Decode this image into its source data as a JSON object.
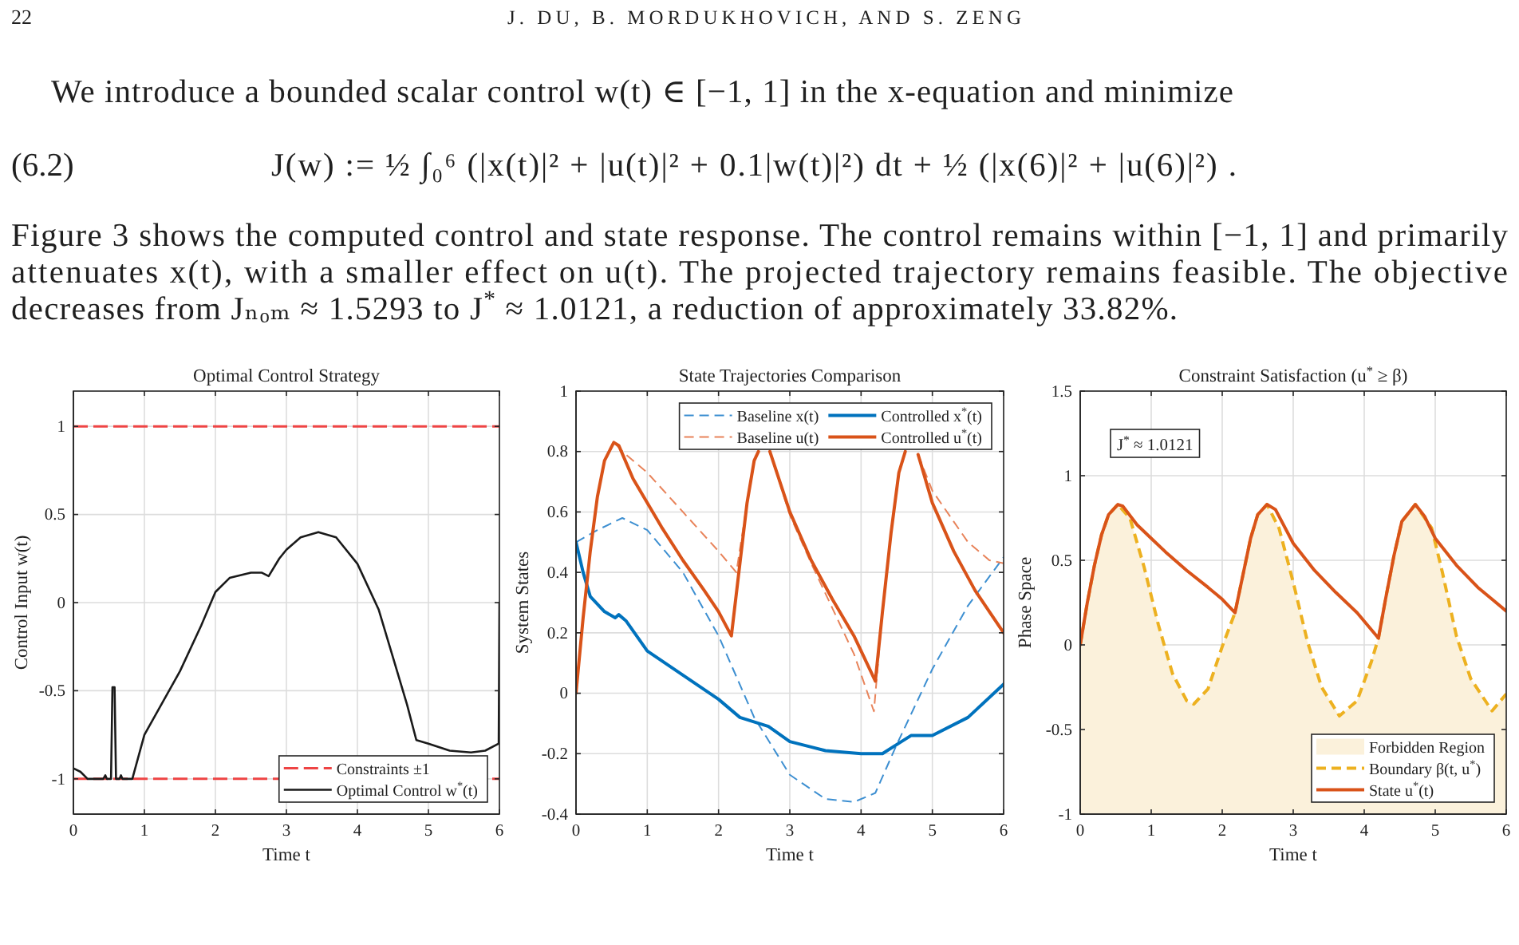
{
  "chart_data": [
    {
      "type": "other",
      "annotations": [
        "22",
        "J. DU, B. MORDUKHOVICH, AND S. ZENG",
        "We introduce a bounded scalar control w(t) ∈ [−1, 1] in the x-equation and minimize",
        "(6.2)",
        "J(w) := ½ ∫₀⁶ (|x(t)|² + |u(t)|² + 0.1|w(t)|²) dt + ½ (|x(6)|² + |u(6)|²) .",
        "Figure 3 shows the computed control and state response. The control remains within [−1, 1] and primarily",
        "attenuates x(t), with a smaller effect on u(t). The projected trajectory remains feasible. The objective",
        "decreases from Jₙₒₘ ≈ 1.5293 to J$^{*}$ ≈ 1.0121, a reduction of approximately 33.82%."
      ]
    },
    {
      "type": "line",
      "title": "Optimal Control Strategy",
      "xlabel": "Time t",
      "ylabel": "Control Input w(t)",
      "xlim": [
        0,
        6
      ],
      "xticks": [
        0,
        1,
        2,
        3,
        4,
        5,
        6
      ],
      "ylim": [
        -1.2,
        1.2
      ],
      "yticks": [
        -1,
        -0.5,
        0,
        0.5,
        1
      ],
      "grid": true,
      "legend": "bottom right",
      "series": [
        {
          "name": "Constraints ±1",
          "color": "#ee4444",
          "line_style": "dashed",
          "x": [
            0,
            6
          ],
          "values": [
            1,
            1
          ]
        },
        {
          "color": "#ee4444",
          "line_style": "dashed",
          "x": [
            0,
            6
          ],
          "values": [
            -1,
            -1
          ]
        },
        {
          "name": "Optimal Control w$^{*}$(t)",
          "color": "#1a1a1a",
          "x": [
            0,
            0.1,
            0.2,
            0.42,
            0.45,
            0.47,
            0.53,
            0.55,
            0.58,
            0.6,
            0.65,
            0.67,
            0.69,
            0.83,
            1,
            1.5,
            1.8,
            2,
            2.2,
            2.5,
            2.65,
            2.75,
            2.9,
            3,
            3.2,
            3.45,
            3.7,
            4,
            4.3,
            4.5,
            4.7,
            4.83,
            5,
            5.3,
            5.6,
            5.8,
            5.99,
            6
          ],
          "values": [
            -0.94,
            -0.96,
            -1,
            -1,
            -0.98,
            -1,
            -1,
            -0.48,
            -0.48,
            -1,
            -1,
            -0.98,
            -1,
            -1,
            -0.75,
            -0.39,
            -0.13,
            0.06,
            0.14,
            0.17,
            0.17,
            0.15,
            0.25,
            0.3,
            0.37,
            0.4,
            0.37,
            0.22,
            -0.04,
            -0.31,
            -0.58,
            -0.78,
            -0.8,
            -0.84,
            -0.85,
            -0.84,
            -0.8,
            0
          ]
        }
      ]
    },
    {
      "type": "line",
      "title": "State Trajectories Comparison",
      "xlabel": "Time t",
      "ylabel": "System States",
      "xlim": [
        0,
        6
      ],
      "xticks": [
        0,
        1,
        2,
        3,
        4,
        5,
        6
      ],
      "ylim": [
        -0.4,
        1
      ],
      "yticks": [
        -0.4,
        -0.2,
        0,
        0.2,
        0.4,
        0.6,
        0.8,
        1
      ],
      "grid": true,
      "legend": "top right",
      "series": [
        {
          "name": "Baseline x(t)",
          "color": "#3d8fd1",
          "line_style": "dashed",
          "x": [
            0,
            0.3,
            0.65,
            1,
            1.5,
            2,
            2.5,
            3,
            3.5,
            3.9,
            4.2,
            4.5,
            5,
            5.5,
            6
          ],
          "values": [
            0.5,
            0.54,
            0.58,
            0.54,
            0.4,
            0.19,
            -0.08,
            -0.27,
            -0.35,
            -0.36,
            -0.33,
            -0.17,
            0.08,
            0.29,
            0.45
          ]
        },
        {
          "name": "Controlled x$^{*}$(t)",
          "color": "#0072bd",
          "line_style": "solid",
          "x": [
            0,
            0.1,
            0.2,
            0.4,
            0.55,
            0.6,
            0.7,
            1,
            1.5,
            2,
            2.3,
            2.7,
            3,
            3.5,
            4,
            4.3,
            4.5,
            4.7,
            5,
            5.5,
            6
          ],
          "values": [
            0.5,
            0.4,
            0.32,
            0.27,
            0.25,
            0.26,
            0.24,
            0.14,
            0.06,
            -0.02,
            -0.08,
            -0.11,
            -0.16,
            -0.19,
            -0.2,
            -0.2,
            -0.17,
            -0.14,
            -0.14,
            -0.08,
            0.03
          ]
        },
        {
          "name": "Baseline u(t)",
          "color": "#e8835a",
          "line_style": "dashed",
          "x": [
            0,
            0.1,
            0.2,
            0.3,
            0.4,
            0.53,
            0.7,
            1,
            1.5,
            2,
            2.25,
            2.4,
            2.5,
            2.56,
            2.63,
            2.72,
            3,
            3.3,
            3.6,
            3.9,
            4.18,
            4.3,
            4.42,
            4.53,
            4.62,
            4.72,
            4.8,
            5,
            5.5,
            5.8,
            6
          ],
          "values": [
            0,
            0.25,
            0.47,
            0.65,
            0.77,
            0.83,
            0.79,
            0.73,
            0.6,
            0.47,
            0.4,
            0.63,
            0.77,
            0.8,
            null,
            0.8,
            0.59,
            0.43,
            0.28,
            0.13,
            -0.06,
            0.27,
            0.53,
            0.73,
            0.8,
            null,
            0.79,
            0.67,
            0.5,
            0.44,
            0.43
          ]
        },
        {
          "name": "Controlled u$^{*}$(t)",
          "color": "#d95319",
          "line_style": "solid",
          "x": [
            0,
            0.1,
            0.2,
            0.3,
            0.4,
            0.53,
            0.6,
            0.8,
            1,
            1.2,
            1.5,
            1.8,
            2,
            2.18,
            2.3,
            2.4,
            2.5,
            2.56,
            2.63,
            2.72,
            3,
            3.3,
            3.6,
            3.9,
            4.2,
            4.3,
            4.42,
            4.53,
            4.62,
            4.72,
            4.8,
            5,
            5.3,
            5.6,
            5.8,
            6
          ],
          "values": [
            0,
            0.25,
            0.47,
            0.65,
            0.77,
            0.83,
            0.82,
            0.71,
            0.63,
            0.55,
            0.44,
            0.34,
            0.27,
            0.19,
            0.43,
            0.63,
            0.77,
            0.8,
            null,
            0.8,
            0.6,
            0.44,
            0.31,
            0.19,
            0.04,
            0.27,
            0.53,
            0.73,
            0.8,
            null,
            0.79,
            0.63,
            0.47,
            0.34,
            0.27,
            0.2
          ]
        }
      ]
    },
    {
      "type": "line",
      "title": "Constraint Satisfaction (u$^{*}$ ≥ β)",
      "xlabel": "Time t",
      "ylabel": "Phase Space",
      "xlim": [
        0,
        6
      ],
      "xticks": [
        0,
        1,
        2,
        3,
        4,
        5,
        6
      ],
      "ylim": [
        -1,
        1.5
      ],
      "yticks": [
        -1,
        -0.5,
        0,
        0.5,
        1,
        1.5
      ],
      "grid": true,
      "legend": "bottom right",
      "annotations": [
        "J$^{*}$ ≈ 1.0121"
      ],
      "series": [
        {
          "name": "Forbidden Region",
          "type": "area",
          "color": "#fbf1db",
          "x": [
            0,
            0.1,
            0.2,
            0.3,
            0.4,
            0.53,
            0.7,
            0.9,
            1.1,
            1.3,
            1.5,
            1.6,
            1.8,
            2,
            2.18,
            2.3,
            2.4,
            2.5,
            2.63,
            2.8,
            3,
            3.2,
            3.4,
            3.65,
            3.9,
            4.1,
            4.2,
            4.3,
            4.42,
            4.53,
            4.72,
            4.95,
            5.1,
            5.3,
            5.5,
            5.8,
            6
          ],
          "values": [
            null,
            null,
            null,
            null,
            null,
            null,
            null,
            null,
            null,
            null,
            null,
            null,
            null,
            null,
            null,
            null,
            null,
            null,
            null,
            null,
            null,
            null,
            null,
            null,
            null,
            null,
            null,
            null,
            null,
            null,
            null,
            null,
            null,
            null,
            null,
            null,
            null
          ],
          "lower": [
            -1,
            -1,
            -1,
            -1,
            -1,
            -1,
            -1,
            -1,
            -1,
            -1,
            -1,
            -1,
            -1,
            -1,
            -1,
            -1,
            -1,
            -1,
            -1,
            -1,
            -1,
            -1,
            -1,
            -1,
            -1,
            -1,
            -1,
            -1,
            -1,
            -1,
            -1,
            -1,
            -1,
            -1,
            -1,
            -1,
            -1
          ],
          "upper": [
            0,
            0.25,
            0.47,
            0.65,
            0.77,
            0.83,
            0.75,
            0.46,
            0.12,
            -0.17,
            -0.33,
            -0.35,
            -0.26,
            -0.01,
            0.19,
            0.43,
            0.63,
            0.77,
            0.83,
            0.69,
            0.37,
            0.02,
            -0.25,
            -0.42,
            -0.33,
            -0.1,
            0.04,
            0.27,
            0.53,
            0.73,
            0.83,
            0.69,
            0.43,
            0.05,
            -0.2,
            -0.39,
            -0.29
          ]
        },
        {
          "name": "Boundary β(t, u$^{*}$)",
          "color": "#edb120",
          "line_style": "dashed",
          "x": [
            0,
            0.1,
            0.2,
            0.3,
            0.4,
            0.53,
            0.7,
            0.9,
            1.1,
            1.3,
            1.5,
            1.6,
            1.8,
            2,
            2.18,
            2.3,
            2.4,
            2.5,
            2.63,
            2.8,
            3,
            3.2,
            3.4,
            3.65,
            3.9,
            4.1,
            4.2,
            4.3,
            4.42,
            4.53,
            4.72,
            4.95,
            5.1,
            5.3,
            5.5,
            5.8,
            6
          ],
          "values": [
            0,
            0.25,
            0.47,
            0.65,
            0.77,
            0.83,
            0.75,
            0.46,
            0.12,
            -0.17,
            -0.33,
            -0.35,
            -0.26,
            -0.01,
            0.19,
            0.43,
            0.63,
            0.77,
            0.83,
            0.69,
            0.37,
            0.02,
            -0.25,
            -0.42,
            -0.33,
            -0.1,
            0.04,
            0.27,
            0.53,
            0.73,
            0.83,
            0.69,
            0.43,
            0.05,
            -0.2,
            -0.39,
            -0.29
          ]
        },
        {
          "name": "State u$^{*}$(t)",
          "color": "#d95319",
          "line_style": "solid",
          "x": [
            0,
            0.1,
            0.2,
            0.3,
            0.4,
            0.53,
            0.6,
            0.8,
            1,
            1.2,
            1.5,
            1.8,
            2,
            2.18,
            2.3,
            2.4,
            2.5,
            2.63,
            2.75,
            3,
            3.3,
            3.6,
            3.9,
            4.2,
            4.3,
            4.42,
            4.53,
            4.72,
            4.85,
            5,
            5.3,
            5.6,
            5.8,
            6
          ],
          "values": [
            0,
            0.25,
            0.47,
            0.65,
            0.77,
            0.83,
            0.82,
            0.71,
            0.63,
            0.55,
            0.44,
            0.34,
            0.27,
            0.19,
            0.43,
            0.63,
            0.77,
            0.83,
            0.8,
            0.6,
            0.44,
            0.31,
            0.19,
            0.04,
            0.27,
            0.53,
            0.73,
            0.83,
            0.76,
            0.63,
            0.47,
            0.34,
            0.27,
            0.2
          ]
        }
      ]
    }
  ]
}
